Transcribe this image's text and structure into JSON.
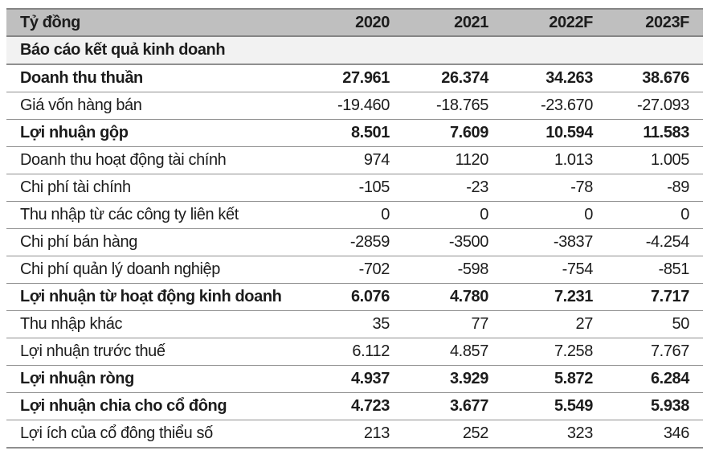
{
  "table": {
    "unit_label": "Tỷ đồng",
    "columns": [
      "2020",
      "2021",
      "2022F",
      "2023F"
    ],
    "section_title": "Báo cáo kết quả kinh doanh",
    "rows": [
      {
        "label": "Doanh thu thuần",
        "bold": true,
        "values": [
          "27.961",
          "26.374",
          "34.263",
          "38.676"
        ]
      },
      {
        "label": "Giá vốn hàng bán",
        "bold": false,
        "values": [
          "-19.460",
          "-18.765",
          "-23.670",
          "-27.093"
        ]
      },
      {
        "label": "Lợi nhuận gộp",
        "bold": true,
        "values": [
          "8.501",
          "7.609",
          "10.594",
          "11.583"
        ]
      },
      {
        "label": "Doanh thu hoạt động tài chính",
        "bold": false,
        "values": [
          "974",
          "1120",
          "1.013",
          "1.005"
        ]
      },
      {
        "label": "Chi phí tài chính",
        "bold": false,
        "values": [
          "-105",
          "-23",
          "-78",
          "-89"
        ]
      },
      {
        "label": "Thu nhập từ các công ty liên kết",
        "bold": false,
        "values": [
          "0",
          "0",
          "0",
          "0"
        ]
      },
      {
        "label": "Chi phí bán hàng",
        "bold": false,
        "values": [
          "-2859",
          "-3500",
          "-3837",
          "-4.254"
        ]
      },
      {
        "label": "Chi phí quản lý doanh nghiệp",
        "bold": false,
        "values": [
          "-702",
          "-598",
          "-754",
          "-851"
        ]
      },
      {
        "label": "Lợi nhuận từ hoạt động kinh doanh",
        "bold": true,
        "values": [
          "6.076",
          "4.780",
          "7.231",
          "7.717"
        ]
      },
      {
        "label": "Thu nhập khác",
        "bold": false,
        "values": [
          "35",
          "77",
          "27",
          "50"
        ]
      },
      {
        "label": "Lợi nhuận trước thuế",
        "bold": false,
        "values": [
          "6.112",
          "4.857",
          "7.258",
          "7.767"
        ]
      },
      {
        "label": "Lợi nhuận ròng",
        "bold": true,
        "values": [
          "4.937",
          "3.929",
          "5.872",
          "6.284"
        ]
      },
      {
        "label": "Lợi nhuận chia cho cổ đông",
        "bold": true,
        "values": [
          "4.723",
          "3.677",
          "5.549",
          "5.938"
        ]
      },
      {
        "label": "Lợi ích của cổ đông thiểu số",
        "bold": false,
        "values": [
          "213",
          "252",
          "323",
          "346"
        ]
      }
    ],
    "colors": {
      "header_bg": "#bfbfbf",
      "section_bg": "#f2f2f2",
      "border": "#8f8f8f",
      "text": "#1c1c1c"
    }
  }
}
